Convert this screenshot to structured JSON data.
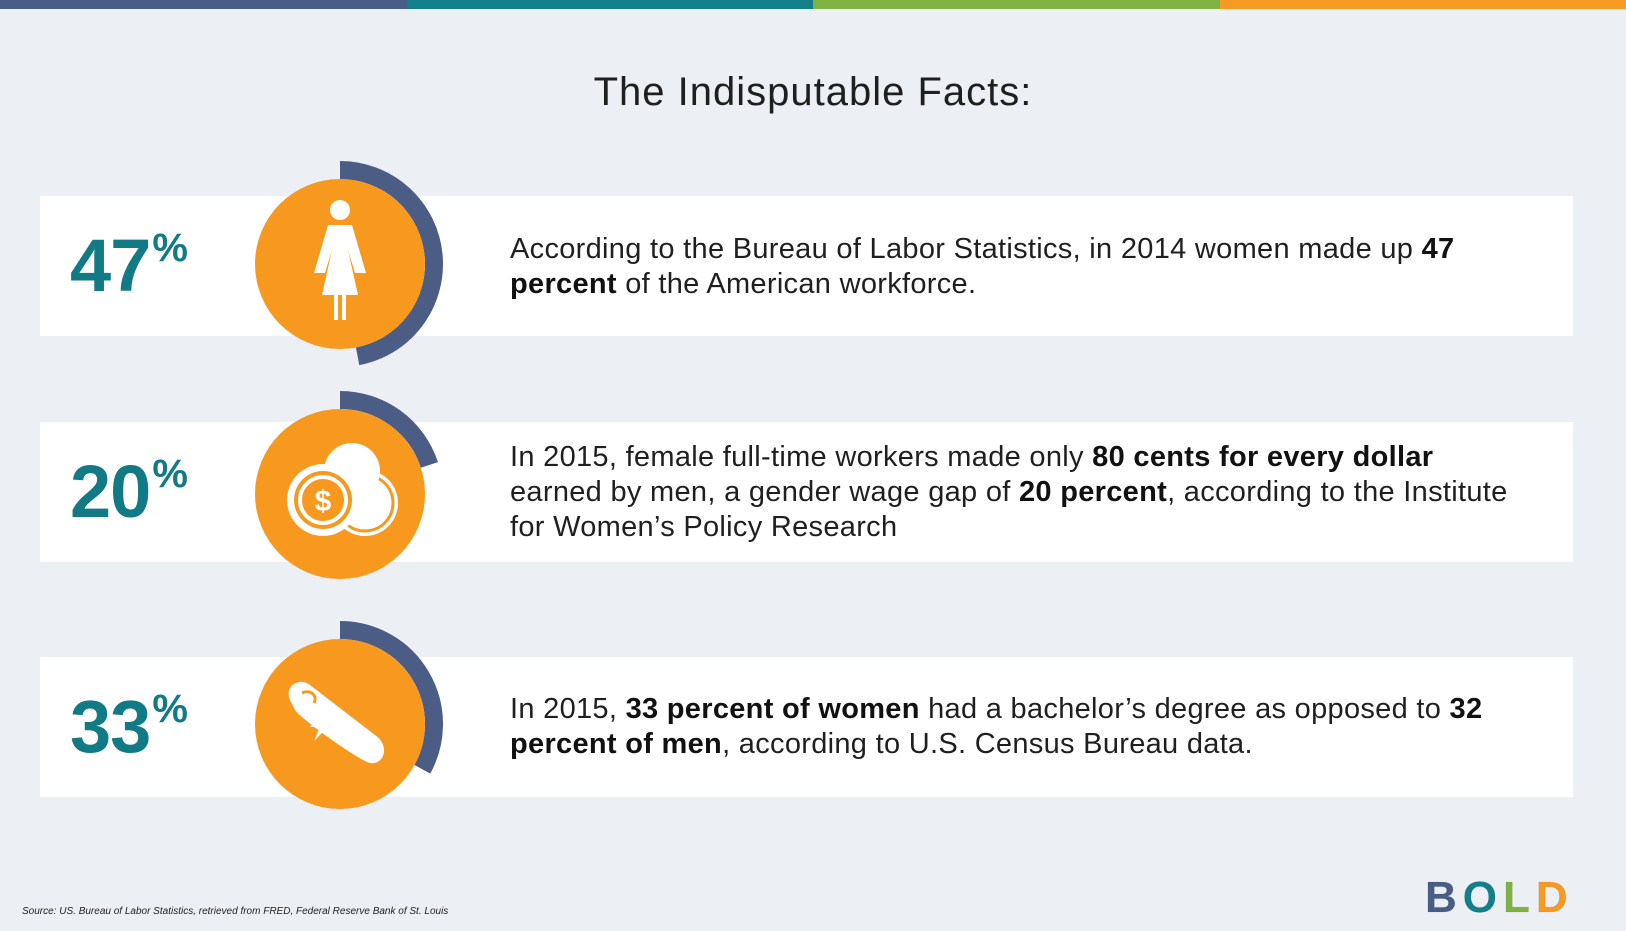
{
  "colors": {
    "bar": [
      "#485e86",
      "#137f8a",
      "#7fb243",
      "#f59a23"
    ],
    "orange": "#f7981f",
    "arc": "#4b5d85",
    "teal": "#117a85"
  },
  "title": "The Indisputable Facts:",
  "facts": [
    {
      "percent": "47",
      "sign": "%",
      "icon": "woman-icon",
      "arc_fraction": 0.47,
      "segments": [
        {
          "text": "According to the Bureau of Labor Statistics, in 2014 women made up ",
          "bold": false
        },
        {
          "text": "47 percent",
          "bold": true
        },
        {
          "text": " of the American workforce.",
          "bold": false
        }
      ]
    },
    {
      "percent": "20",
      "sign": "%",
      "icon": "coins-icon",
      "arc_fraction": 0.2,
      "segments": [
        {
          "text": "In 2015, female full-time workers made only ",
          "bold": false
        },
        {
          "text": "80 cents for every dollar",
          "bold": true
        },
        {
          "text": " earned by men, a gender wage gap of ",
          "bold": false
        },
        {
          "text": "20 percent",
          "bold": true
        },
        {
          "text": ", according to the Institute for Women’s Policy Research",
          "bold": false
        }
      ]
    },
    {
      "percent": "33",
      "sign": "%",
      "icon": "diploma-icon",
      "arc_fraction": 0.33,
      "segments": [
        {
          "text": "In 2015, ",
          "bold": false
        },
        {
          "text": "33 percent of women",
          "bold": true
        },
        {
          "text": " had a bachelor’s degree as opposed to ",
          "bold": false
        },
        {
          "text": "32 percent of men",
          "bold": true
        },
        {
          "text": ", according to U.S. Census Bureau data.",
          "bold": false
        }
      ]
    }
  ],
  "source": "Source: US. Bureau of Labor Statistics, retrieved from FRED, Federal Reserve Bank of St. Louis",
  "logo": {
    "letters": [
      "B",
      "O",
      "L",
      "D"
    ],
    "colors": [
      "#485e86",
      "#137f8a",
      "#7fb243",
      "#f59a23"
    ]
  }
}
